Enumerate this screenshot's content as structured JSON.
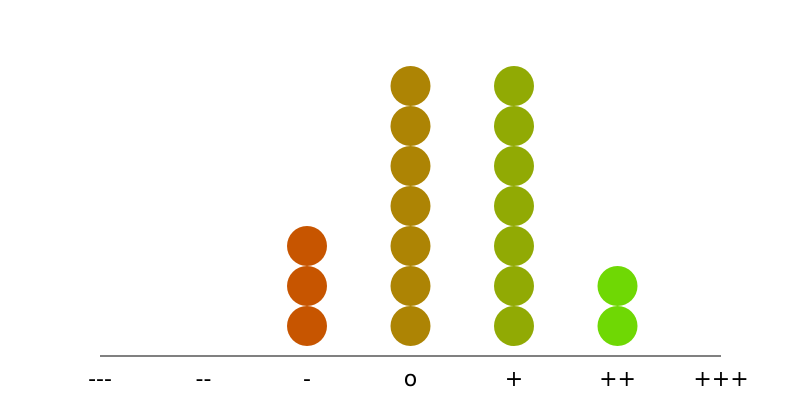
{
  "chart_data": {
    "type": "dot",
    "categories": [
      "---",
      "--",
      "-",
      "o",
      "+",
      "++",
      "+++"
    ],
    "values": [
      0,
      0,
      3,
      7,
      7,
      2,
      0
    ],
    "colors": [
      "#c0392b",
      "#c84d12",
      "#c75500",
      "#ad8404",
      "#91aa04",
      "#6fd804",
      "#4ee804"
    ],
    "axis_color": "#000000"
  }
}
